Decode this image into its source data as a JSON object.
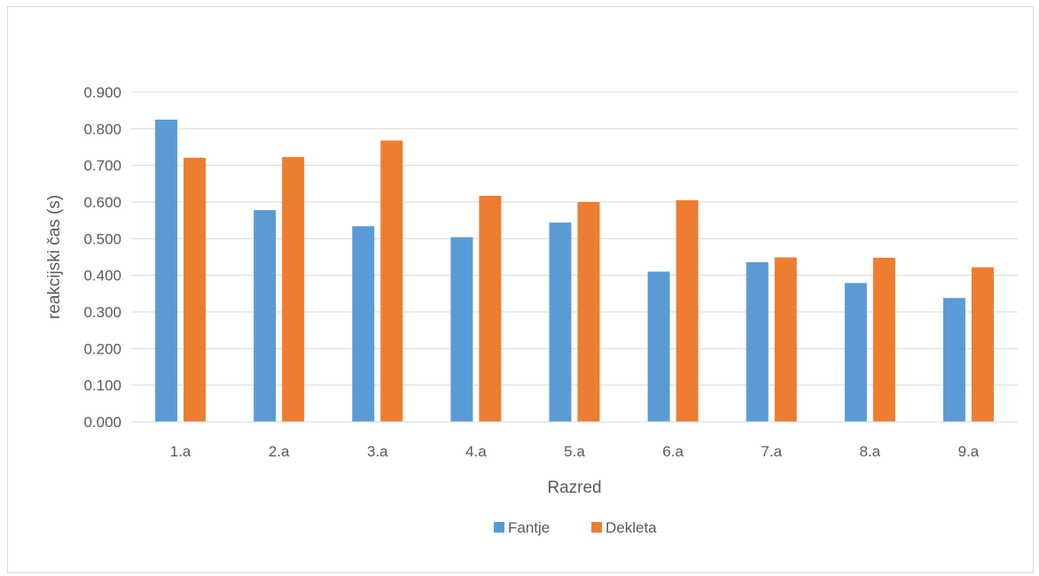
{
  "chart_data": {
    "type": "bar",
    "categories": [
      "1.a",
      "2.a",
      "3.a",
      "4.a",
      "5.a",
      "6.a",
      "7.a",
      "8.a",
      "9.a"
    ],
    "series": [
      {
        "name": "Fantje",
        "color": "#5b9bd5",
        "values": [
          0.825,
          0.578,
          0.534,
          0.504,
          0.544,
          0.41,
          0.436,
          0.379,
          0.338
        ]
      },
      {
        "name": "Dekleta",
        "color": "#ed7d31",
        "values": [
          0.721,
          0.723,
          0.768,
          0.617,
          0.6,
          0.605,
          0.449,
          0.448,
          0.422
        ]
      }
    ],
    "xlabel": "Razred",
    "ylabel": "reakcijski čas (s)",
    "ylim": [
      0,
      0.9
    ],
    "yticks": [
      "0.000",
      "0.100",
      "0.200",
      "0.300",
      "0.400",
      "0.500",
      "0.600",
      "0.700",
      "0.800",
      "0.900"
    ],
    "grid": true,
    "legend_position": "bottom"
  }
}
